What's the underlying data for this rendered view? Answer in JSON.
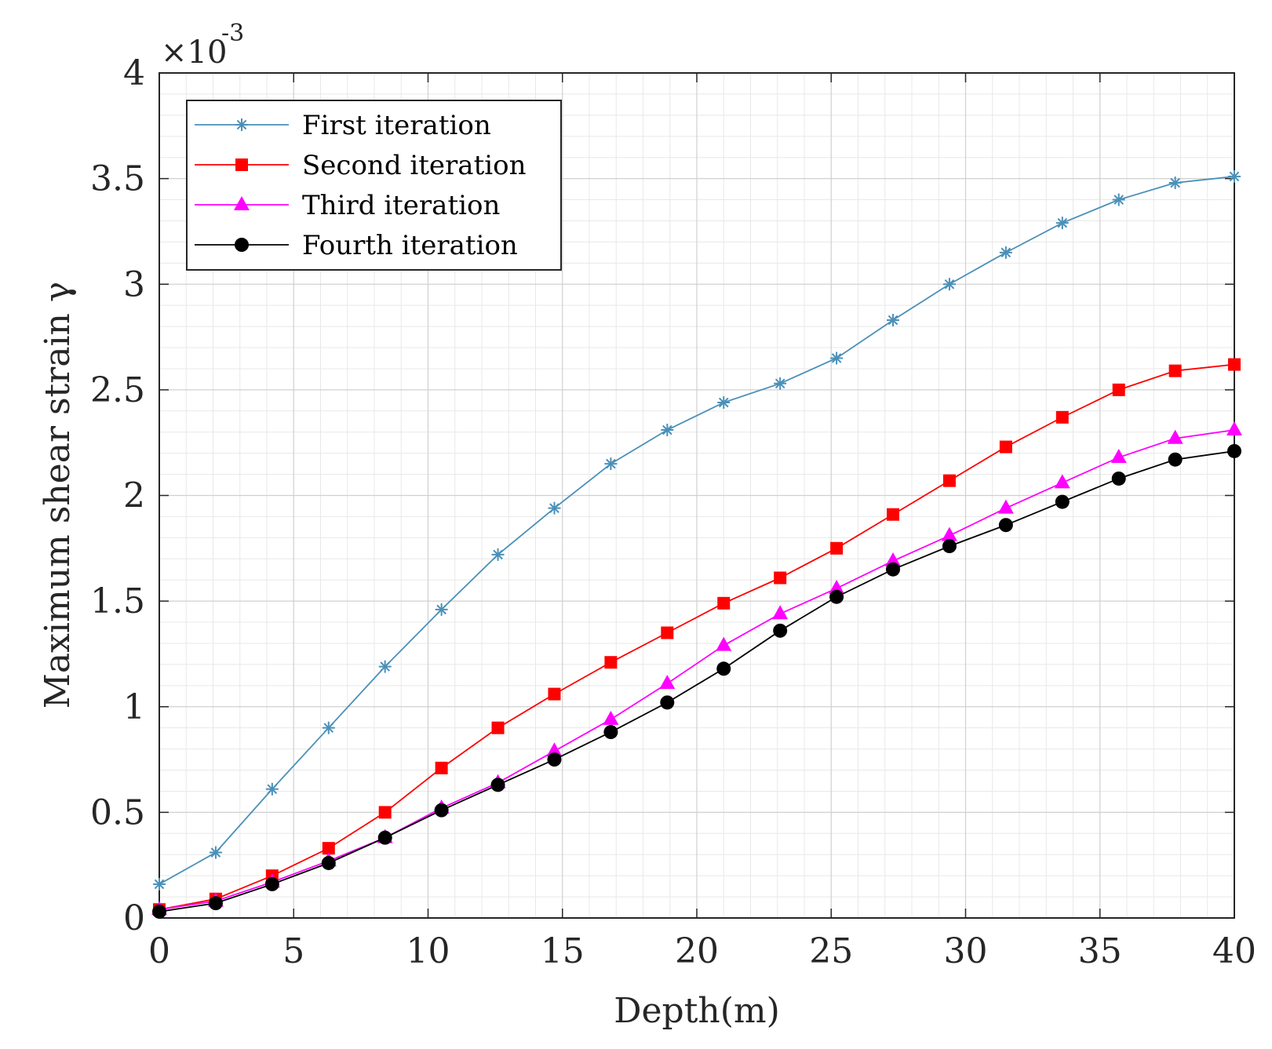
{
  "chart_data": {
    "type": "line",
    "title": "",
    "xlabel": "Depth(m)",
    "ylabel": "Maximum shear strain γ",
    "y_exponent_base": "×10",
    "y_exponent_power": "-3",
    "xlim": [
      0,
      40
    ],
    "ylim": [
      0,
      4
    ],
    "xticks": [
      "0",
      "5",
      "10",
      "15",
      "20",
      "25",
      "30",
      "35",
      "40"
    ],
    "yticks": [
      "0",
      "0.5",
      "1",
      "1.5",
      "2",
      "2.5",
      "3",
      "3.5",
      "4"
    ],
    "grid": "major and minor",
    "legend_position": "top-left",
    "x": [
      0,
      2.1,
      4.2,
      6.3,
      8.4,
      10.5,
      12.6,
      14.7,
      16.8,
      18.9,
      21,
      23.1,
      25.2,
      27.3,
      29.4,
      31.5,
      33.6,
      35.7,
      37.8,
      40
    ],
    "series": [
      {
        "name": "First iteration",
        "color": "#4a90b8",
        "marker": "asterisk",
        "values": [
          0.16,
          0.31,
          0.61,
          0.9,
          1.19,
          1.46,
          1.72,
          1.94,
          2.15,
          2.31,
          2.44,
          2.53,
          2.65,
          2.83,
          3.0,
          3.15,
          3.29,
          3.4,
          3.48,
          3.51
        ]
      },
      {
        "name": "Second iteration",
        "color": "#ff0000",
        "marker": "square",
        "values": [
          0.04,
          0.09,
          0.2,
          0.33,
          0.5,
          0.71,
          0.9,
          1.06,
          1.21,
          1.35,
          1.49,
          1.61,
          1.75,
          1.91,
          2.07,
          2.23,
          2.37,
          2.5,
          2.59,
          2.62
        ]
      },
      {
        "name": "Third iteration",
        "color": "#ff00ff",
        "marker": "triangle",
        "values": [
          0.04,
          0.08,
          0.17,
          0.27,
          0.38,
          0.52,
          0.64,
          0.79,
          0.94,
          1.11,
          1.29,
          1.44,
          1.56,
          1.69,
          1.81,
          1.94,
          2.06,
          2.18,
          2.27,
          2.31
        ]
      },
      {
        "name": "Fourth iteration",
        "color": "#000000",
        "marker": "circle",
        "values": [
          0.03,
          0.07,
          0.16,
          0.26,
          0.38,
          0.51,
          0.63,
          0.75,
          0.88,
          1.02,
          1.18,
          1.36,
          1.52,
          1.65,
          1.76,
          1.86,
          1.97,
          2.08,
          2.17,
          2.21
        ]
      }
    ]
  }
}
